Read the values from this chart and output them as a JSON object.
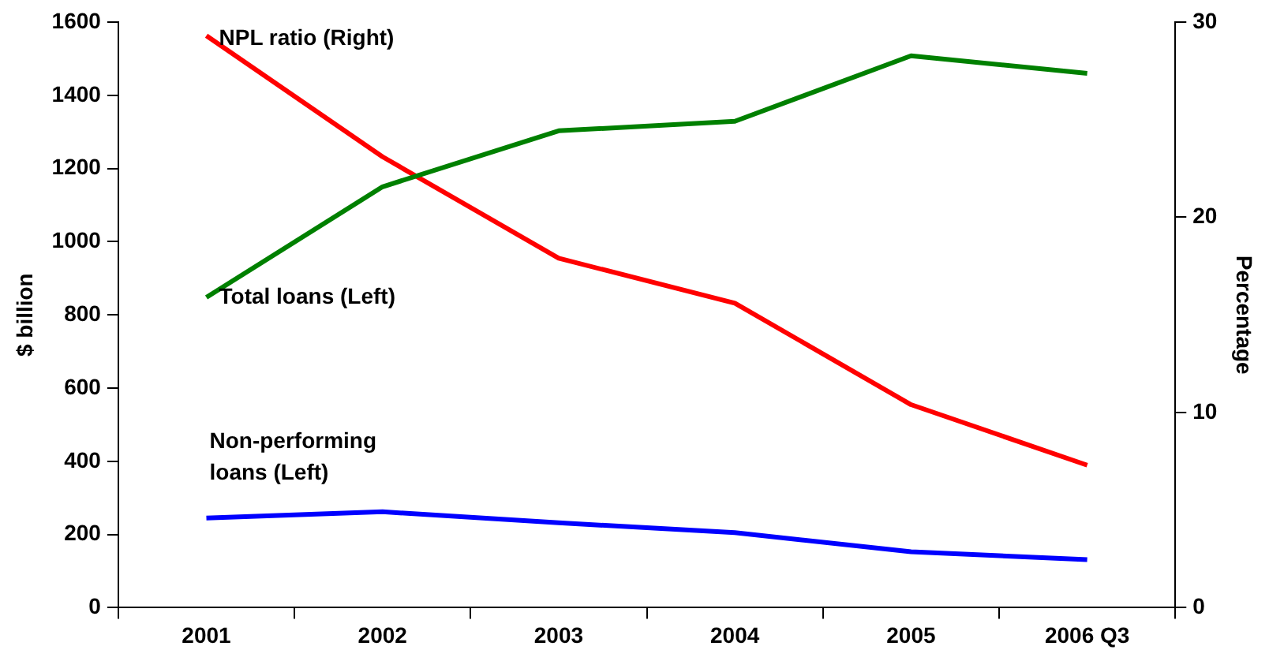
{
  "chart_data": {
    "type": "line",
    "categories": [
      "2001",
      "2002",
      "2003",
      "2004",
      "2005",
      "2006 Q3"
    ],
    "ylabel": "$ billion",
    "y2label": "Percentage",
    "ylim": [
      0,
      1600
    ],
    "yticks": [
      0,
      200,
      400,
      600,
      800,
      1000,
      1200,
      1400,
      1600
    ],
    "y2lim": [
      0,
      30
    ],
    "y2ticks": [
      0,
      10,
      20,
      30
    ],
    "grid": false,
    "legend": false,
    "marker": "none",
    "line_style": "solid",
    "series": [
      {
        "name": "Total loans (Left)",
        "color": "#008000",
        "values": [
          848,
          1150,
          1303,
          1329,
          1508,
          1460
        ]
      },
      {
        "name": "Non-performing loans (Left)",
        "color": "#0000ff",
        "values": [
          245,
          262,
          232,
          205,
          153,
          131
        ]
      },
      {
        "name": "NPL ratio (Right)",
        "color": "#ff0000",
        "axis": "y2",
        "values": [
          29.3,
          23.1,
          17.9,
          15.6,
          10.4,
          7.3
        ]
      }
    ]
  }
}
